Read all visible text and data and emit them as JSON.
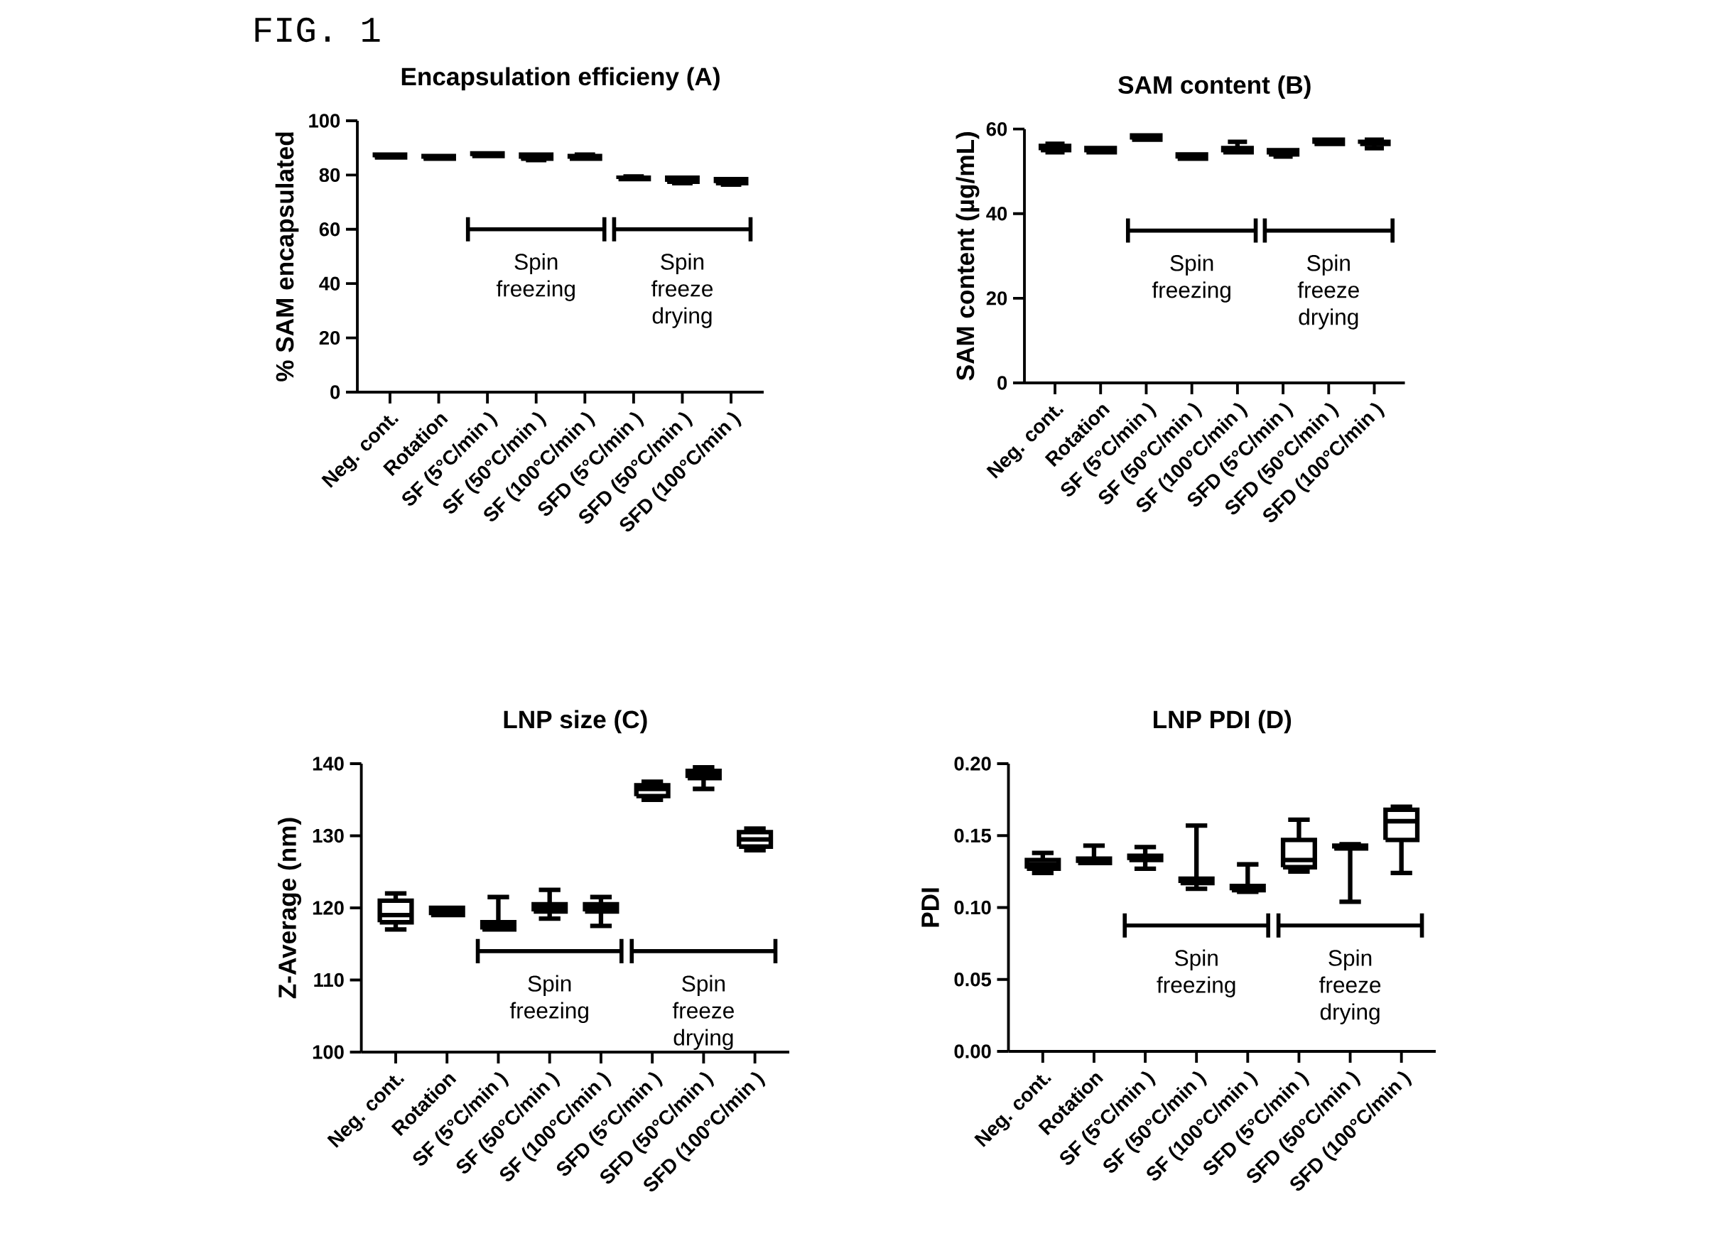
{
  "chart_data": [
    {
      "type": "box",
      "title": "Encapsulation efficieny (A)",
      "ylabel": "% SAM encapsulated",
      "color": "#000000",
      "categories": [
        "Neg. cont.",
        "Rotation",
        "SF (5°C/min )",
        "SF (50°C/min )",
        "SF (100°C/min )",
        "SFD (5°C/min )",
        "SFD (50°C/min )",
        "SFD (100°C/min )"
      ],
      "boxes": [
        {
          "low": 86.5,
          "q1": 86.5,
          "median": 87,
          "q3": 87.5,
          "high": 87.5
        },
        {
          "low": 86,
          "q1": 86,
          "median": 86.5,
          "q3": 87,
          "high": 87
        },
        {
          "low": 87,
          "q1": 87,
          "median": 87.5,
          "q3": 88,
          "high": 88
        },
        {
          "low": 85.5,
          "q1": 86,
          "median": 86.5,
          "q3": 87.5,
          "high": 87.5
        },
        {
          "low": 86,
          "q1": 86,
          "median": 86.5,
          "q3": 87,
          "high": 87.5
        },
        {
          "low": 78.5,
          "q1": 78.5,
          "median": 79,
          "q3": 79,
          "high": 79.5
        },
        {
          "low": 77,
          "q1": 77.5,
          "median": 78,
          "q3": 79,
          "high": 79
        },
        {
          "low": 76.5,
          "q1": 77,
          "median": 77.5,
          "q3": 78.5,
          "high": 78.5
        }
      ],
      "ylim": [
        0,
        100
      ],
      "yticks": [
        0,
        20,
        40,
        60,
        80,
        100
      ],
      "annotations": [
        "FIG. 1",
        "Spin freezing",
        "Spin freeze drying"
      ]
    },
    {
      "type": "box",
      "title": "SAM content (B)",
      "ylabel": "SAM content (µg/mL)",
      "color": "#000000",
      "categories": [
        "Neg. cont.",
        "Rotation",
        "SF (5°C/min )",
        "SF (50°C/min )",
        "SF (100°C/min )",
        "SFD (5°C/min )",
        "SFD (50°C/min )",
        "SFD (100°C/min )"
      ],
      "boxes": [
        {
          "low": 54.5,
          "q1": 55,
          "median": 55.5,
          "q3": 56,
          "high": 56.5
        },
        {
          "low": 54.5,
          "q1": 54.5,
          "median": 55,
          "q3": 55.5,
          "high": 55.5
        },
        {
          "low": 57.5,
          "q1": 57.5,
          "median": 58,
          "q3": 58.5,
          "high": 58.5
        },
        {
          "low": 53,
          "q1": 53,
          "median": 53.5,
          "q3": 54,
          "high": 54
        },
        {
          "low": 54.5,
          "q1": 54.5,
          "median": 55,
          "q3": 55.5,
          "high": 57
        },
        {
          "low": 53.5,
          "q1": 54,
          "median": 54.5,
          "q3": 55,
          "high": 55
        },
        {
          "low": 56.5,
          "q1": 56.5,
          "median": 57,
          "q3": 57.5,
          "high": 57.5
        },
        {
          "low": 55.5,
          "q1": 56.5,
          "median": 57,
          "q3": 57,
          "high": 57.5
        }
      ],
      "ylim": [
        0,
        60
      ],
      "yticks": [
        0,
        20,
        40,
        60
      ],
      "annotations": [
        "Spin freezing",
        "Spin freeze drying"
      ]
    },
    {
      "type": "box",
      "title": "LNP size (C)",
      "ylabel": "Z-Average (nm)",
      "color": "#000000",
      "categories": [
        "Neg. cont.",
        "Rotation",
        "SF (5°C/min )",
        "SF (50°C/min )",
        "SF (100°C/min )",
        "SFD (5°C/min )",
        "SFD (50°C/min )",
        "SFD (100°C/min )"
      ],
      "boxes": [
        {
          "low": 117,
          "q1": 118,
          "median": 119,
          "q3": 121,
          "high": 122
        },
        {
          "low": 119,
          "q1": 119,
          "median": 119.5,
          "q3": 120,
          "high": 120
        },
        {
          "low": 117,
          "q1": 117,
          "median": 117.5,
          "q3": 118,
          "high": 121.5
        },
        {
          "low": 118.5,
          "q1": 119.5,
          "median": 120,
          "q3": 120.5,
          "high": 122.5
        },
        {
          "low": 117.5,
          "q1": 119.5,
          "median": 120,
          "q3": 120.5,
          "high": 121.5
        },
        {
          "low": 135,
          "q1": 135.5,
          "median": 136.5,
          "q3": 137,
          "high": 137.5
        },
        {
          "low": 136.5,
          "q1": 138,
          "median": 138.5,
          "q3": 139,
          "high": 139.5
        },
        {
          "low": 128,
          "q1": 128.5,
          "median": 129.5,
          "q3": 130.5,
          "high": 131
        }
      ],
      "ylim": [
        100,
        140
      ],
      "yticks": [
        100,
        110,
        120,
        130,
        140
      ],
      "annotations": [
        "Spin freezing",
        "Spin freeze drying"
      ]
    },
    {
      "type": "box",
      "title": "LNP PDI (D)",
      "ylabel": "PDI",
      "color": "#000000",
      "categories": [
        "Neg. cont.",
        "Rotation",
        "SF (5°C/min )",
        "SF (50°C/min )",
        "SF (100°C/min )",
        "SFD (5°C/min )",
        "SFD (50°C/min )",
        "SFD (100°C/min )"
      ],
      "boxes": [
        {
          "low": 0.124,
          "q1": 0.127,
          "median": 0.13,
          "q3": 0.133,
          "high": 0.138
        },
        {
          "low": 0.131,
          "q1": 0.131,
          "median": 0.133,
          "q3": 0.134,
          "high": 0.143
        },
        {
          "low": 0.127,
          "q1": 0.133,
          "median": 0.135,
          "q3": 0.136,
          "high": 0.142
        },
        {
          "low": 0.113,
          "q1": 0.117,
          "median": 0.119,
          "q3": 0.12,
          "high": 0.157
        },
        {
          "low": 0.111,
          "q1": 0.112,
          "median": 0.114,
          "q3": 0.115,
          "high": 0.13
        },
        {
          "low": 0.125,
          "q1": 0.128,
          "median": 0.133,
          "q3": 0.147,
          "high": 0.161
        },
        {
          "low": 0.104,
          "q1": 0.141,
          "median": 0.142,
          "q3": 0.143,
          "high": 0.144
        },
        {
          "low": 0.124,
          "q1": 0.147,
          "median": 0.16,
          "q3": 0.168,
          "high": 0.17
        }
      ],
      "ylim": [
        0,
        0.2
      ],
      "yticks": [
        {
          "value": 0,
          "label": "0.00"
        },
        {
          "value": 0.05,
          "label": "0.05"
        },
        {
          "value": 0.1,
          "label": "0.10"
        },
        {
          "value": 0.15,
          "label": "0.15"
        },
        {
          "value": 0.2,
          "label": "0.20"
        }
      ],
      "annotations": [
        "Spin freezing",
        "Spin freeze drying"
      ]
    }
  ]
}
